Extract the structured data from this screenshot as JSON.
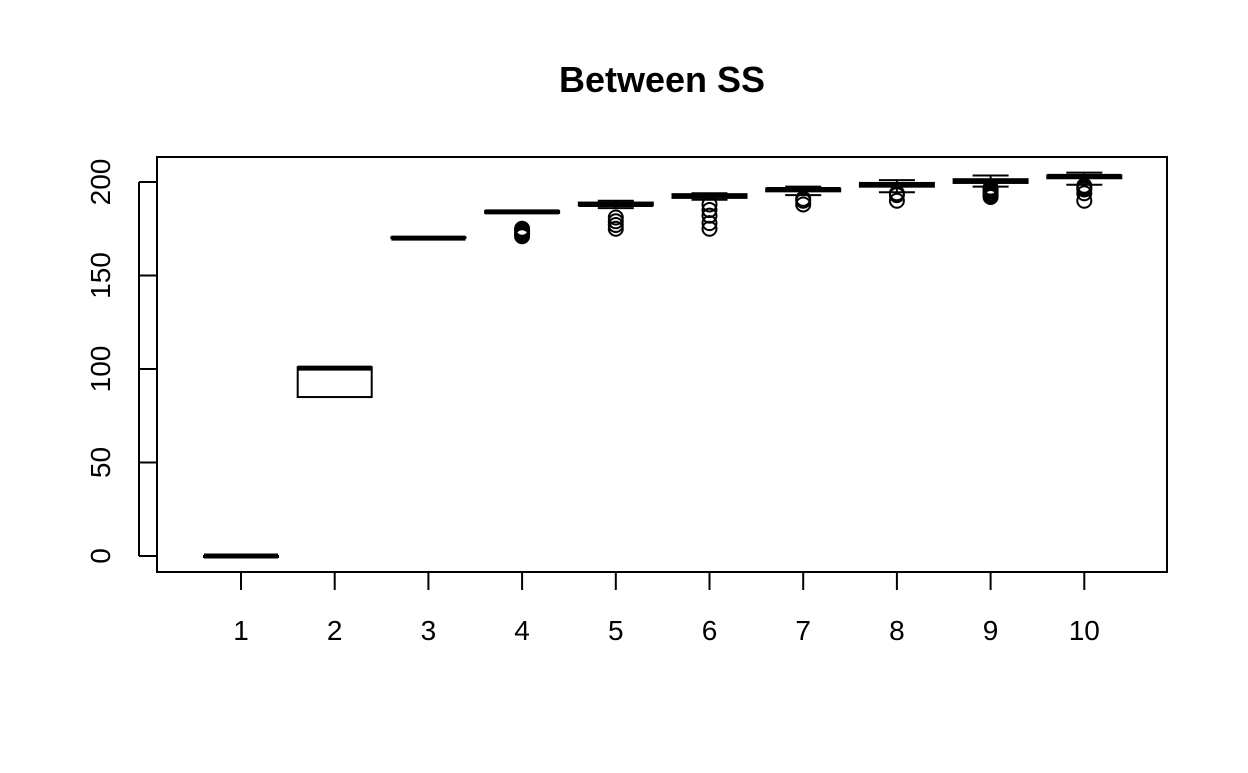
{
  "chart_data": {
    "type": "box",
    "title": "Between SS",
    "xlabel": "",
    "ylabel": "",
    "categories": [
      "1",
      "2",
      "3",
      "4",
      "5",
      "6",
      "7",
      "8",
      "9",
      "10"
    ],
    "ylim": [
      -8,
      213
    ],
    "yticks": [
      0,
      50,
      100,
      150,
      200
    ],
    "ytick_labels": [
      "0",
      "50",
      "100",
      "150",
      "200"
    ],
    "grid": false,
    "boxes": [
      {
        "category": "1",
        "min": 0,
        "q1": 0,
        "median": 0,
        "q3": 0,
        "max": 0,
        "outliers": []
      },
      {
        "category": "2",
        "min": 85,
        "q1": 85,
        "median": 100.5,
        "q3": 101,
        "max": 101,
        "outliers": []
      },
      {
        "category": "3",
        "min": 170,
        "q1": 170,
        "median": 170,
        "q3": 170.5,
        "max": 170.5,
        "outliers": []
      },
      {
        "category": "4",
        "min": 183.5,
        "q1": 183.5,
        "median": 184,
        "q3": 184.5,
        "max": 184.5,
        "outliers": [
          171,
          172,
          173,
          174,
          175
        ]
      },
      {
        "category": "5",
        "min": 186,
        "q1": 187.5,
        "median": 188,
        "q3": 189,
        "max": 190,
        "outliers": [
          175,
          177,
          179,
          181
        ]
      },
      {
        "category": "6",
        "min": 190.5,
        "q1": 191.5,
        "median": 192.5,
        "q3": 193.5,
        "max": 194,
        "outliers": [
          175,
          178,
          182,
          185,
          188
        ]
      },
      {
        "category": "7",
        "min": 193,
        "q1": 195,
        "median": 196,
        "q3": 196.5,
        "max": 197.5,
        "outliers": [
          188,
          190,
          191
        ]
      },
      {
        "category": "8",
        "min": 194.5,
        "q1": 197.5,
        "median": 198.5,
        "q3": 199.5,
        "max": 201,
        "outliers": [
          190,
          193,
          194
        ]
      },
      {
        "category": "9",
        "min": 197.5,
        "q1": 199.5,
        "median": 200.5,
        "q3": 201.5,
        "max": 203.5,
        "outliers": [
          192,
          193,
          194,
          195,
          196,
          197
        ]
      },
      {
        "category": "10",
        "min": 198.5,
        "q1": 202,
        "median": 203,
        "q3": 203.5,
        "max": 205,
        "outliers": [
          190,
          194,
          196,
          197,
          198
        ]
      }
    ]
  }
}
